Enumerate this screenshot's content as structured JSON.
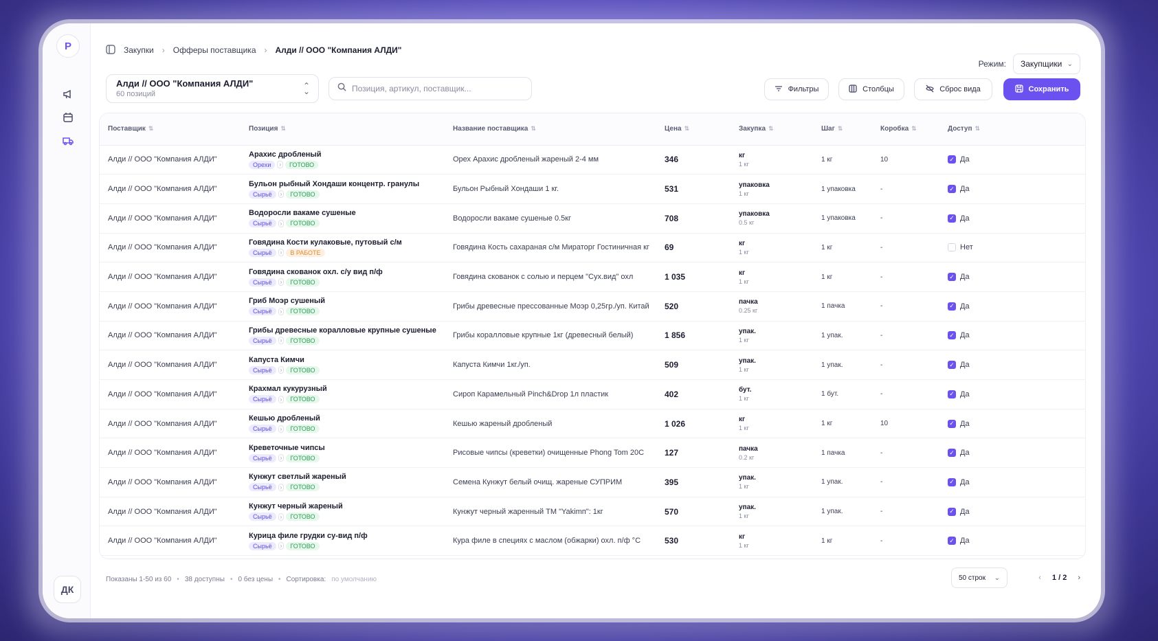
{
  "breadcrumb": {
    "items": [
      "Закупки",
      "Офферы поставщика"
    ],
    "current": "Алди // ООО \"Компания АЛДИ\""
  },
  "logo": "P",
  "user_initials": "ДК",
  "mode": {
    "label": "Режим:",
    "value": "Закупщики"
  },
  "supplier": {
    "name": "Алди // ООО \"Компания АЛДИ\"",
    "count": "60 позиций"
  },
  "search": {
    "placeholder": "Позиция, артикул, поставщик..."
  },
  "buttons": {
    "filters": "Фильтры",
    "columns": "Столбцы",
    "reset": "Сброс вида",
    "save": "Сохранить"
  },
  "columns": [
    "Поставщик",
    "Позиция",
    "Название поставщика",
    "Цена",
    "Закупка",
    "Шаг",
    "Коробка",
    "Доступ"
  ],
  "rows": [
    {
      "supplier": "Алди // ООО \"Компания АЛДИ\"",
      "position": "Арахис дробленый",
      "category": "Орехи",
      "status": "ГОТОВО",
      "status_type": "ok",
      "supplier_name": "Орех Арахис дробленый жареный 2-4 мм",
      "price": "346",
      "unit": "кг",
      "unit_sub": "1 кг",
      "step": "1 кг",
      "box": "10",
      "access": "Да",
      "checked": true
    },
    {
      "supplier": "Алди // ООО \"Компания АЛДИ\"",
      "position": "Бульон рыбный Хондаши концентр. гранулы",
      "category": "Сырьё",
      "status": "ГОТОВО",
      "status_type": "ok",
      "supplier_name": "Бульон Рыбный Хондаши 1 кг.",
      "price": "531",
      "unit": "упаковка",
      "unit_sub": "1 кг",
      "step": "1 упаковка",
      "box": "-",
      "access": "Да",
      "checked": true
    },
    {
      "supplier": "Алди // ООО \"Компания АЛДИ\"",
      "position": "Водоросли вакаме сушеные",
      "category": "Сырьё",
      "status": "ГОТОВО",
      "status_type": "ok",
      "supplier_name": "Водоросли вакаме сушеные 0.5кг",
      "price": "708",
      "unit": "упаковка",
      "unit_sub": "0.5 кг",
      "step": "1 упаковка",
      "box": "-",
      "access": "Да",
      "checked": true
    },
    {
      "supplier": "Алди // ООО \"Компания АЛДИ\"",
      "position": "Говядина Кости кулаковые, путовый с/м",
      "category": "Сырьё",
      "status": "В РАБОТЕ",
      "status_type": "work",
      "supplier_name": "Говядина Кость сахараная с/м Мираторг Гостиничная кг",
      "price": "69",
      "unit": "кг",
      "unit_sub": "1 кг",
      "step": "1 кг",
      "box": "-",
      "access": "Нет",
      "checked": false
    },
    {
      "supplier": "Алди // ООО \"Компания АЛДИ\"",
      "position": "Говядина скованок охл. с/у вид п/ф",
      "category": "Сырьё",
      "status": "ГОТОВО",
      "status_type": "ok",
      "supplier_name": "Говядина скованок с солью и перцем \"Сух.вид\" охл",
      "price": "1 035",
      "unit": "кг",
      "unit_sub": "1 кг",
      "step": "1 кг",
      "box": "-",
      "access": "Да",
      "checked": true
    },
    {
      "supplier": "Алди // ООО \"Компания АЛДИ\"",
      "position": "Гриб Моэр сушеный",
      "category": "Сырьё",
      "status": "ГОТОВО",
      "status_type": "ok",
      "supplier_name": "Грибы древесные прессованные Моэр 0,25гр./уп. Китай",
      "price": "520",
      "unit": "пачка",
      "unit_sub": "0.25 кг",
      "step": "1 пачка",
      "box": "-",
      "access": "Да",
      "checked": true
    },
    {
      "supplier": "Алди // ООО \"Компания АЛДИ\"",
      "position": "Грибы древесные коралловые крупные сушеные",
      "category": "Сырьё",
      "status": "ГОТОВО",
      "status_type": "ok",
      "supplier_name": "Грибы коралловые крупные 1кг (древесный белый)",
      "price": "1 856",
      "unit": "упак.",
      "unit_sub": "1 кг",
      "step": "1 упак.",
      "box": "-",
      "access": "Да",
      "checked": true
    },
    {
      "supplier": "Алди // ООО \"Компания АЛДИ\"",
      "position": "Капуста Кимчи",
      "category": "Сырьё",
      "status": "ГОТОВО",
      "status_type": "ok",
      "supplier_name": "Капуста Кимчи 1кг./уп.",
      "price": "509",
      "unit": "упак.",
      "unit_sub": "1 кг",
      "step": "1 упак.",
      "box": "-",
      "access": "Да",
      "checked": true
    },
    {
      "supplier": "Алди // ООО \"Компания АЛДИ\"",
      "position": "Крахмал кукурузный",
      "category": "Сырьё",
      "status": "ГОТОВО",
      "status_type": "ok",
      "supplier_name": "Сироп Карамельный Pinch&Drop 1л пластик",
      "price": "402",
      "unit": "бут.",
      "unit_sub": "1 кг",
      "step": "1 бут.",
      "box": "-",
      "access": "Да",
      "checked": true
    },
    {
      "supplier": "Алди // ООО \"Компания АЛДИ\"",
      "position": "Кешью дробленый",
      "category": "Сырьё",
      "status": "ГОТОВО",
      "status_type": "ok",
      "supplier_name": "Кешью жареный дробленый",
      "price": "1 026",
      "unit": "кг",
      "unit_sub": "1 кг",
      "step": "1 кг",
      "box": "10",
      "access": "Да",
      "checked": true
    },
    {
      "supplier": "Алди // ООО \"Компания АЛДИ\"",
      "position": "Креветочные чипсы",
      "category": "Сырьё",
      "status": "ГОТОВО",
      "status_type": "ok",
      "supplier_name": "Рисовые чипсы (креветки) очищенные Phong Tom 20C",
      "price": "127",
      "unit": "пачка",
      "unit_sub": "0.2 кг",
      "step": "1 пачка",
      "box": "-",
      "access": "Да",
      "checked": true
    },
    {
      "supplier": "Алди // ООО \"Компания АЛДИ\"",
      "position": "Кунжут светлый жареный",
      "category": "Сырьё",
      "status": "ГОТОВО",
      "status_type": "ok",
      "supplier_name": "Семена Кунжут белый очищ. жареные СУПРИМ",
      "price": "395",
      "unit": "упак.",
      "unit_sub": "1 кг",
      "step": "1 упак.",
      "box": "-",
      "access": "Да",
      "checked": true
    },
    {
      "supplier": "Алди // ООО \"Компания АЛДИ\"",
      "position": "Кунжут черный жареный",
      "category": "Сырьё",
      "status": "ГОТОВО",
      "status_type": "ok",
      "supplier_name": "Кунжут черный жаренный ТМ \"Yakimп\": 1кг",
      "price": "570",
      "unit": "упак.",
      "unit_sub": "1 кг",
      "step": "1 упак.",
      "box": "-",
      "access": "Да",
      "checked": true
    },
    {
      "supplier": "Алди // ООО \"Компания АЛДИ\"",
      "position": "Курица филе грудки су-вид п/ф",
      "category": "Сырьё",
      "status": "ГОТОВО",
      "status_type": "ok",
      "supplier_name": "Кура филе в специях с маслом (обжарки) охл. п/ф °С",
      "price": "530",
      "unit": "кг",
      "unit_sub": "1 кг",
      "step": "1 кг",
      "box": "-",
      "access": "Да",
      "checked": true
    }
  ],
  "footer": {
    "shown": "Показаны 1-50 из 60",
    "available": "38 доступны",
    "no_price": "0 без цены",
    "sort_label": "Сортировка:",
    "sort_value": "по умолчанию",
    "rows_per_page": "50 строк",
    "page": "1 / 2"
  }
}
